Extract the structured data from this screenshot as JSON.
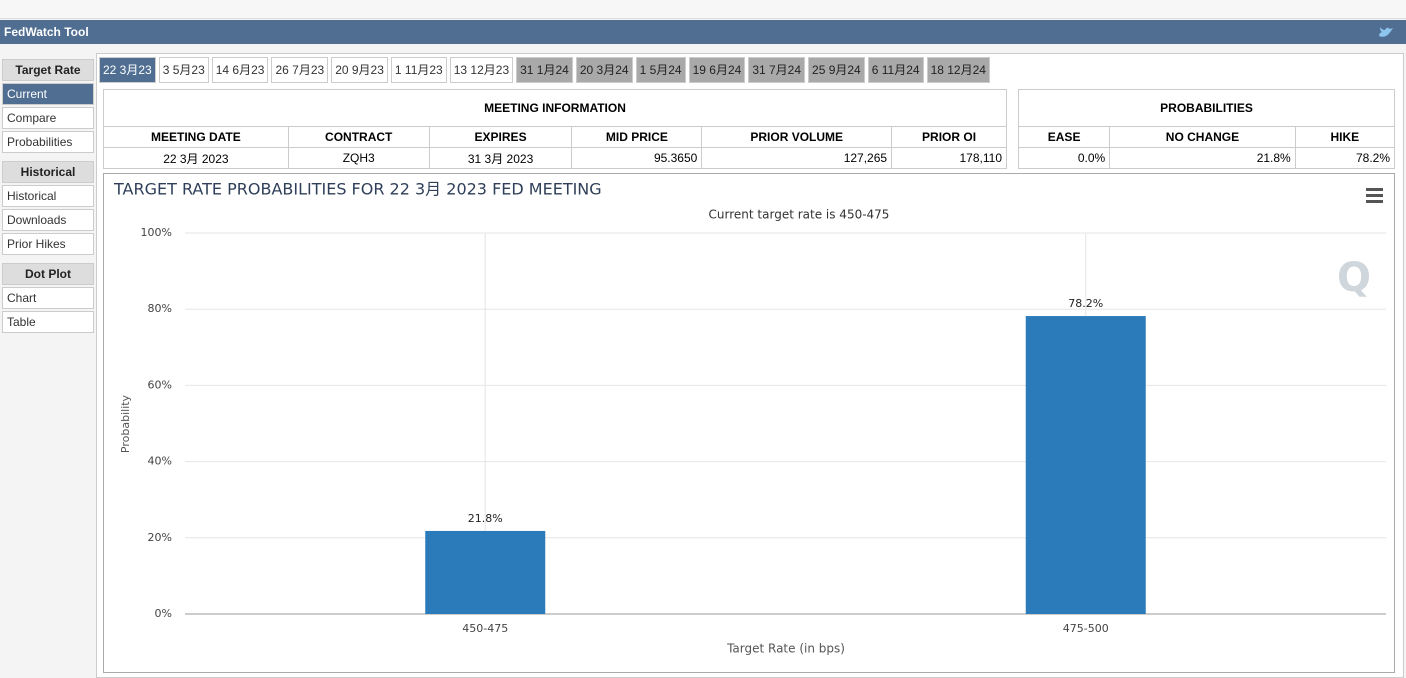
{
  "header": {
    "title": "FedWatch Tool"
  },
  "sidebar": [
    {
      "title": "Target Rate",
      "items": [
        "Current",
        "Compare",
        "Probabilities"
      ]
    },
    {
      "title": "Historical",
      "items": [
        "Historical",
        "Downloads",
        "Prior Hikes"
      ]
    },
    {
      "title": "Dot Plot",
      "items": [
        "Chart",
        "Table"
      ]
    }
  ],
  "tabs": [
    "22 3月23",
    "3 5月23",
    "14 6月23",
    "26 7月23",
    "20 9月23",
    "1 11月23",
    "13 12月23",
    "31 1月24",
    "20 3月24",
    "1 5月24",
    "19 6月24",
    "31 7月24",
    "25 9月24",
    "6 11月24",
    "18 12月24"
  ],
  "meeting_info": {
    "title": "MEETING INFORMATION",
    "columns": [
      "MEETING DATE",
      "CONTRACT",
      "EXPIRES",
      "MID PRICE",
      "PRIOR VOLUME",
      "PRIOR OI"
    ],
    "row": [
      "22 3月 2023",
      "ZQH3",
      "31 3月 2023",
      "95.3650",
      "127,265",
      "178,110"
    ]
  },
  "probabilities": {
    "title": "PROBABILITIES",
    "columns": [
      "EASE",
      "NO CHANGE",
      "HIKE"
    ],
    "row": [
      "0.0%",
      "21.8%",
      "78.2%"
    ]
  },
  "chart_data": {
    "type": "bar",
    "title": "TARGET RATE PROBABILITIES FOR 22 3月 2023 FED MEETING",
    "subtitle": "Current target rate is 450-475",
    "x_label": "Target Rate (in bps)",
    "y_label": "Probability",
    "categories": [
      "450-475",
      "475-500"
    ],
    "values": [
      21.8,
      78.2
    ],
    "value_labels": [
      "21.8%",
      "78.2%"
    ],
    "color": "#2b7bba",
    "ylim": [
      0,
      100
    ],
    "yticks": [
      {
        "value": 0,
        "label": "0%"
      },
      {
        "value": 20,
        "label": "20%"
      },
      {
        "value": 40,
        "label": "40%"
      },
      {
        "value": 60,
        "label": "60%"
      },
      {
        "value": 80,
        "label": "80%"
      },
      {
        "value": 100,
        "label": "100%"
      }
    ],
    "grid": true
  }
}
